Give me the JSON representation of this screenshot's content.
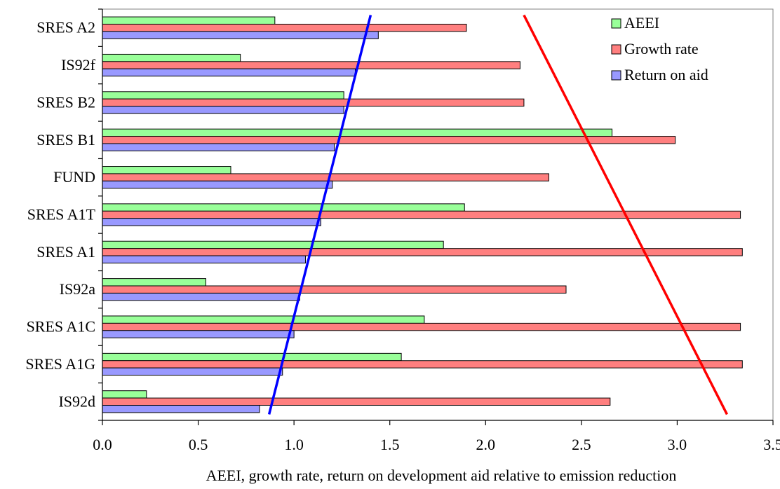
{
  "chart_data": {
    "type": "bar",
    "orientation": "horizontal",
    "categories": [
      "IS92d",
      "SRES A1G",
      "SRES A1C",
      "IS92a",
      "SRES A1",
      "SRES A1T",
      "FUND",
      "SRES B1",
      "SRES B2",
      "IS92f",
      "SRES A2"
    ],
    "series": [
      {
        "name": "AEEI",
        "color": "#99ff99",
        "values": [
          0.23,
          1.56,
          1.68,
          0.54,
          1.78,
          1.89,
          0.67,
          2.66,
          1.26,
          0.72,
          0.9
        ]
      },
      {
        "name": "Growth rate",
        "color": "#ff7f7f",
        "values": [
          2.65,
          3.34,
          3.33,
          2.42,
          3.34,
          3.33,
          2.33,
          2.99,
          2.2,
          2.18,
          1.9
        ]
      },
      {
        "name": "Return on aid",
        "color": "#9999ff",
        "values": [
          0.82,
          0.94,
          1.0,
          1.03,
          1.06,
          1.14,
          1.2,
          1.21,
          1.26,
          1.32,
          1.44
        ]
      }
    ],
    "xlabel": "AEEI, growth rate, return on development aid relative to emission reduction",
    "ylabel": "",
    "xlim": [
      0,
      3.5
    ],
    "xticks": [
      "0.0",
      "0.5",
      "1.0",
      "1.5",
      "2.0",
      "2.5",
      "3.0",
      "3.5"
    ],
    "grid": false,
    "legend_position": "top-right",
    "overlay_lines": [
      {
        "color": "#0000ff",
        "from": {
          "x": 0.87,
          "category": "IS92d"
        },
        "to": {
          "x": 1.4,
          "category": "SRES A2"
        }
      },
      {
        "color": "#ff0000",
        "from": {
          "x": 3.26,
          "category": "IS92d"
        },
        "to": {
          "x": 2.2,
          "category": "SRES A2"
        }
      }
    ]
  }
}
